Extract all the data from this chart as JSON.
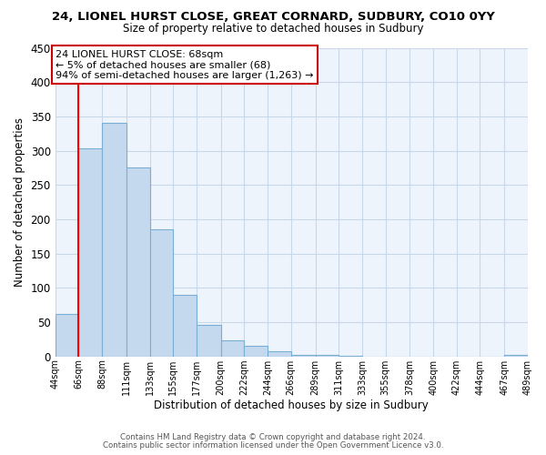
{
  "title": "24, LIONEL HURST CLOSE, GREAT CORNARD, SUDBURY, CO10 0YY",
  "subtitle": "Size of property relative to detached houses in Sudbury",
  "xlabel": "Distribution of detached houses by size in Sudbury",
  "ylabel": "Number of detached properties",
  "bar_color": "#c5d9ee",
  "bar_edge_color": "#7aafd4",
  "redline_x": 66,
  "bin_edges": [
    44,
    66,
    88,
    111,
    133,
    155,
    177,
    200,
    222,
    244,
    266,
    289,
    311,
    333,
    355,
    378,
    400,
    422,
    444,
    467,
    489
  ],
  "bin_labels": [
    "44sqm",
    "66sqm",
    "88sqm",
    "111sqm",
    "133sqm",
    "155sqm",
    "177sqm",
    "200sqm",
    "222sqm",
    "244sqm",
    "266sqm",
    "289sqm",
    "311sqm",
    "333sqm",
    "355sqm",
    "378sqm",
    "400sqm",
    "422sqm",
    "444sqm",
    "467sqm",
    "489sqm"
  ],
  "counts": [
    62,
    303,
    340,
    275,
    185,
    90,
    46,
    24,
    16,
    7,
    2,
    2,
    1,
    0,
    0,
    0,
    0,
    0,
    0,
    2
  ],
  "ylim": [
    0,
    450
  ],
  "yticks": [
    0,
    50,
    100,
    150,
    200,
    250,
    300,
    350,
    400,
    450
  ],
  "annotation_title": "24 LIONEL HURST CLOSE: 68sqm",
  "annotation_line1": "← 5% of detached houses are smaller (68)",
  "annotation_line2": "94% of semi-detached houses are larger (1,263) →",
  "annotation_box_color": "#ffffff",
  "annotation_box_edge": "#cc0000",
  "footer1": "Contains HM Land Registry data © Crown copyright and database right 2024.",
  "footer2": "Contains public sector information licensed under the Open Government Licence v3.0.",
  "bg_color": "#ffffff",
  "plot_bg_color": "#eef4fb",
  "grid_color": "#c8d8ea"
}
